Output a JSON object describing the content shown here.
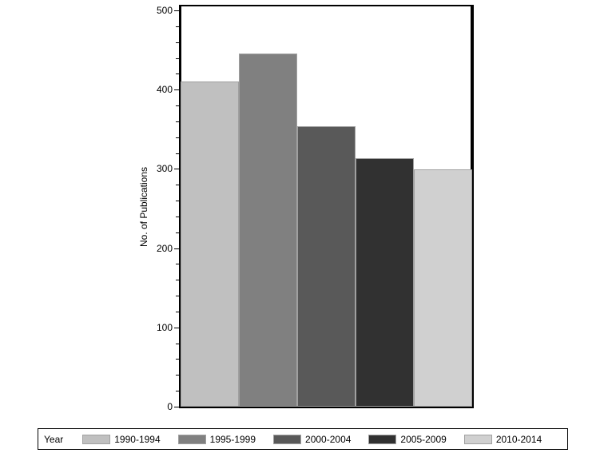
{
  "chart_data": {
    "type": "bar",
    "title": "",
    "xlabel": "",
    "ylabel": "No. of Publications",
    "ylim": [
      0,
      500
    ],
    "yticks": [
      0,
      100,
      200,
      300,
      400,
      500
    ],
    "ytick_labels": [
      "0",
      "100",
      "200",
      "300",
      "400",
      "500"
    ],
    "minor_tick_step": 20,
    "grid": false,
    "legend_position": "bottom",
    "legend_title": "Year",
    "categories": [
      "1990-1994",
      "1995-1999",
      "2000-2004",
      "2005-2009",
      "2010-2014"
    ],
    "values": [
      410,
      446,
      354,
      314,
      299
    ],
    "colors": [
      "#c0c0c0",
      "#808080",
      "#595959",
      "#313131",
      "#d0d0d0"
    ]
  }
}
